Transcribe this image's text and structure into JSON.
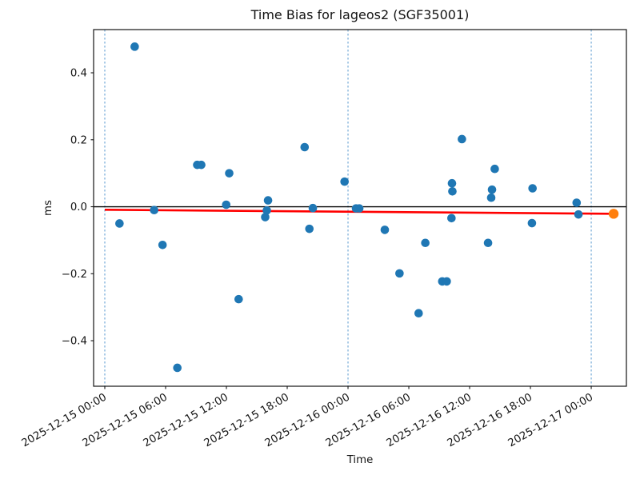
{
  "chart_data": {
    "type": "scatter",
    "title": "Time Bias for lageos2 (SGF35001)",
    "xlabel": "Time",
    "ylabel": "ms",
    "grid": "off",
    "legend": "none",
    "x_axis": {
      "unit": "hours since 2025-12-15 00:00",
      "lim": [
        -1.105,
        51.47
      ],
      "tick_rotation_deg": 30,
      "ticks": [
        {
          "hours": 0,
          "label": "2025-12-15 00:00"
        },
        {
          "hours": 6,
          "label": "2025-12-15 06:00"
        },
        {
          "hours": 12,
          "label": "2025-12-15 12:00"
        },
        {
          "hours": 18,
          "label": "2025-12-15 18:00"
        },
        {
          "hours": 24,
          "label": "2025-12-16 00:00"
        },
        {
          "hours": 30,
          "label": "2025-12-16 06:00"
        },
        {
          "hours": 36,
          "label": "2025-12-16 12:00"
        },
        {
          "hours": 42,
          "label": "2025-12-16 18:00"
        },
        {
          "hours": 48,
          "label": "2025-12-17 00:00"
        }
      ]
    },
    "y_axis": {
      "lim": [
        -0.536,
        0.529
      ],
      "ticks": [
        {
          "value": 0.4,
          "label": "0.4"
        },
        {
          "value": 0.2,
          "label": "0.2"
        },
        {
          "value": 0.0,
          "label": "0.0"
        },
        {
          "value": -0.2,
          "label": "−0.2"
        },
        {
          "value": -0.4,
          "label": "−0.4"
        }
      ]
    },
    "series": [
      {
        "name": "time-bias-observations",
        "point_name": "observation-point",
        "color": "#1f77b4",
        "marker_radius": 5.3,
        "points": [
          [
            1.45,
            -0.05
          ],
          [
            2.95,
            0.478
          ],
          [
            4.87,
            -0.01
          ],
          [
            5.7,
            -0.114
          ],
          [
            7.16,
            -0.481
          ],
          [
            9.12,
            0.125
          ],
          [
            9.52,
            0.125
          ],
          [
            11.98,
            0.006
          ],
          [
            12.28,
            0.1
          ],
          [
            13.21,
            -0.276
          ],
          [
            15.83,
            -0.031
          ],
          [
            15.99,
            -0.011
          ],
          [
            16.11,
            0.019
          ],
          [
            19.72,
            0.178
          ],
          [
            20.19,
            -0.066
          ],
          [
            20.53,
            -0.004
          ],
          [
            23.66,
            0.075
          ],
          [
            24.79,
            -0.005
          ],
          [
            25.11,
            -0.005
          ],
          [
            27.63,
            -0.069
          ],
          [
            29.08,
            -0.199
          ],
          [
            30.97,
            -0.318
          ],
          [
            31.63,
            -0.108
          ],
          [
            33.3,
            -0.223
          ],
          [
            33.74,
            -0.223
          ],
          [
            34.21,
            -0.034
          ],
          [
            34.26,
            0.07
          ],
          [
            34.3,
            0.046
          ],
          [
            35.24,
            0.202
          ],
          [
            37.82,
            -0.108
          ],
          [
            38.13,
            0.027
          ],
          [
            38.21,
            0.051
          ],
          [
            38.48,
            0.113
          ],
          [
            42.15,
            -0.049
          ],
          [
            42.21,
            0.055
          ],
          [
            46.56,
            0.012
          ],
          [
            46.74,
            -0.023
          ]
        ]
      },
      {
        "name": "extrapolated-prediction",
        "point_name": "prediction-point",
        "color": "#ff7f0e",
        "marker_radius": 6.2,
        "points": [
          [
            50.21,
            -0.021
          ]
        ]
      }
    ],
    "trend_line": {
      "color": "#ff0000",
      "width": 2.6,
      "from": [
        0,
        -0.009
      ],
      "to": [
        50.21,
        -0.021
      ]
    },
    "zero_line": {
      "color": "#000000",
      "width": 1.4,
      "y": 0.0
    },
    "day_lines": {
      "color": "#5b9bd0",
      "style": "dashed",
      "width": 1,
      "hours": [
        0,
        24,
        48
      ]
    }
  }
}
